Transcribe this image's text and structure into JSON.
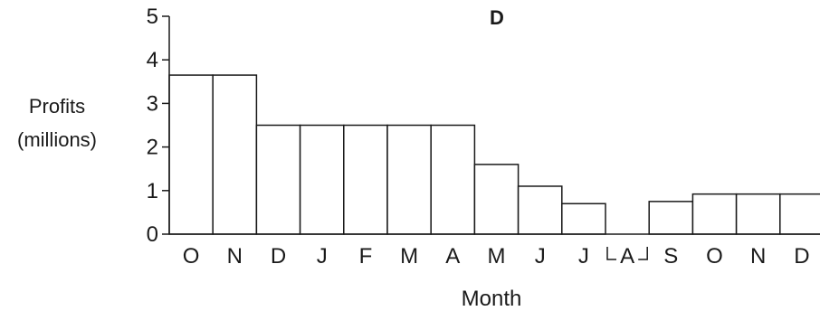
{
  "chart_data": {
    "type": "bar",
    "title": "D",
    "ylabel": [
      "Profits",
      "(millions)"
    ],
    "xlabel": "Month",
    "categories": [
      "O",
      "N",
      "D",
      "J",
      "F",
      "M",
      "A",
      "M",
      "J",
      "J",
      "A",
      "S",
      "O",
      "N",
      "D"
    ],
    "values": [
      3.65,
      3.65,
      2.5,
      2.5,
      2.5,
      2.5,
      2.5,
      1.6,
      1.1,
      0.7,
      0.0,
      0.75,
      0.92,
      0.92,
      0.92
    ],
    "yticks": [
      0,
      1,
      2,
      3,
      4,
      5
    ],
    "ylim": [
      0,
      5
    ],
    "grid": false
  }
}
